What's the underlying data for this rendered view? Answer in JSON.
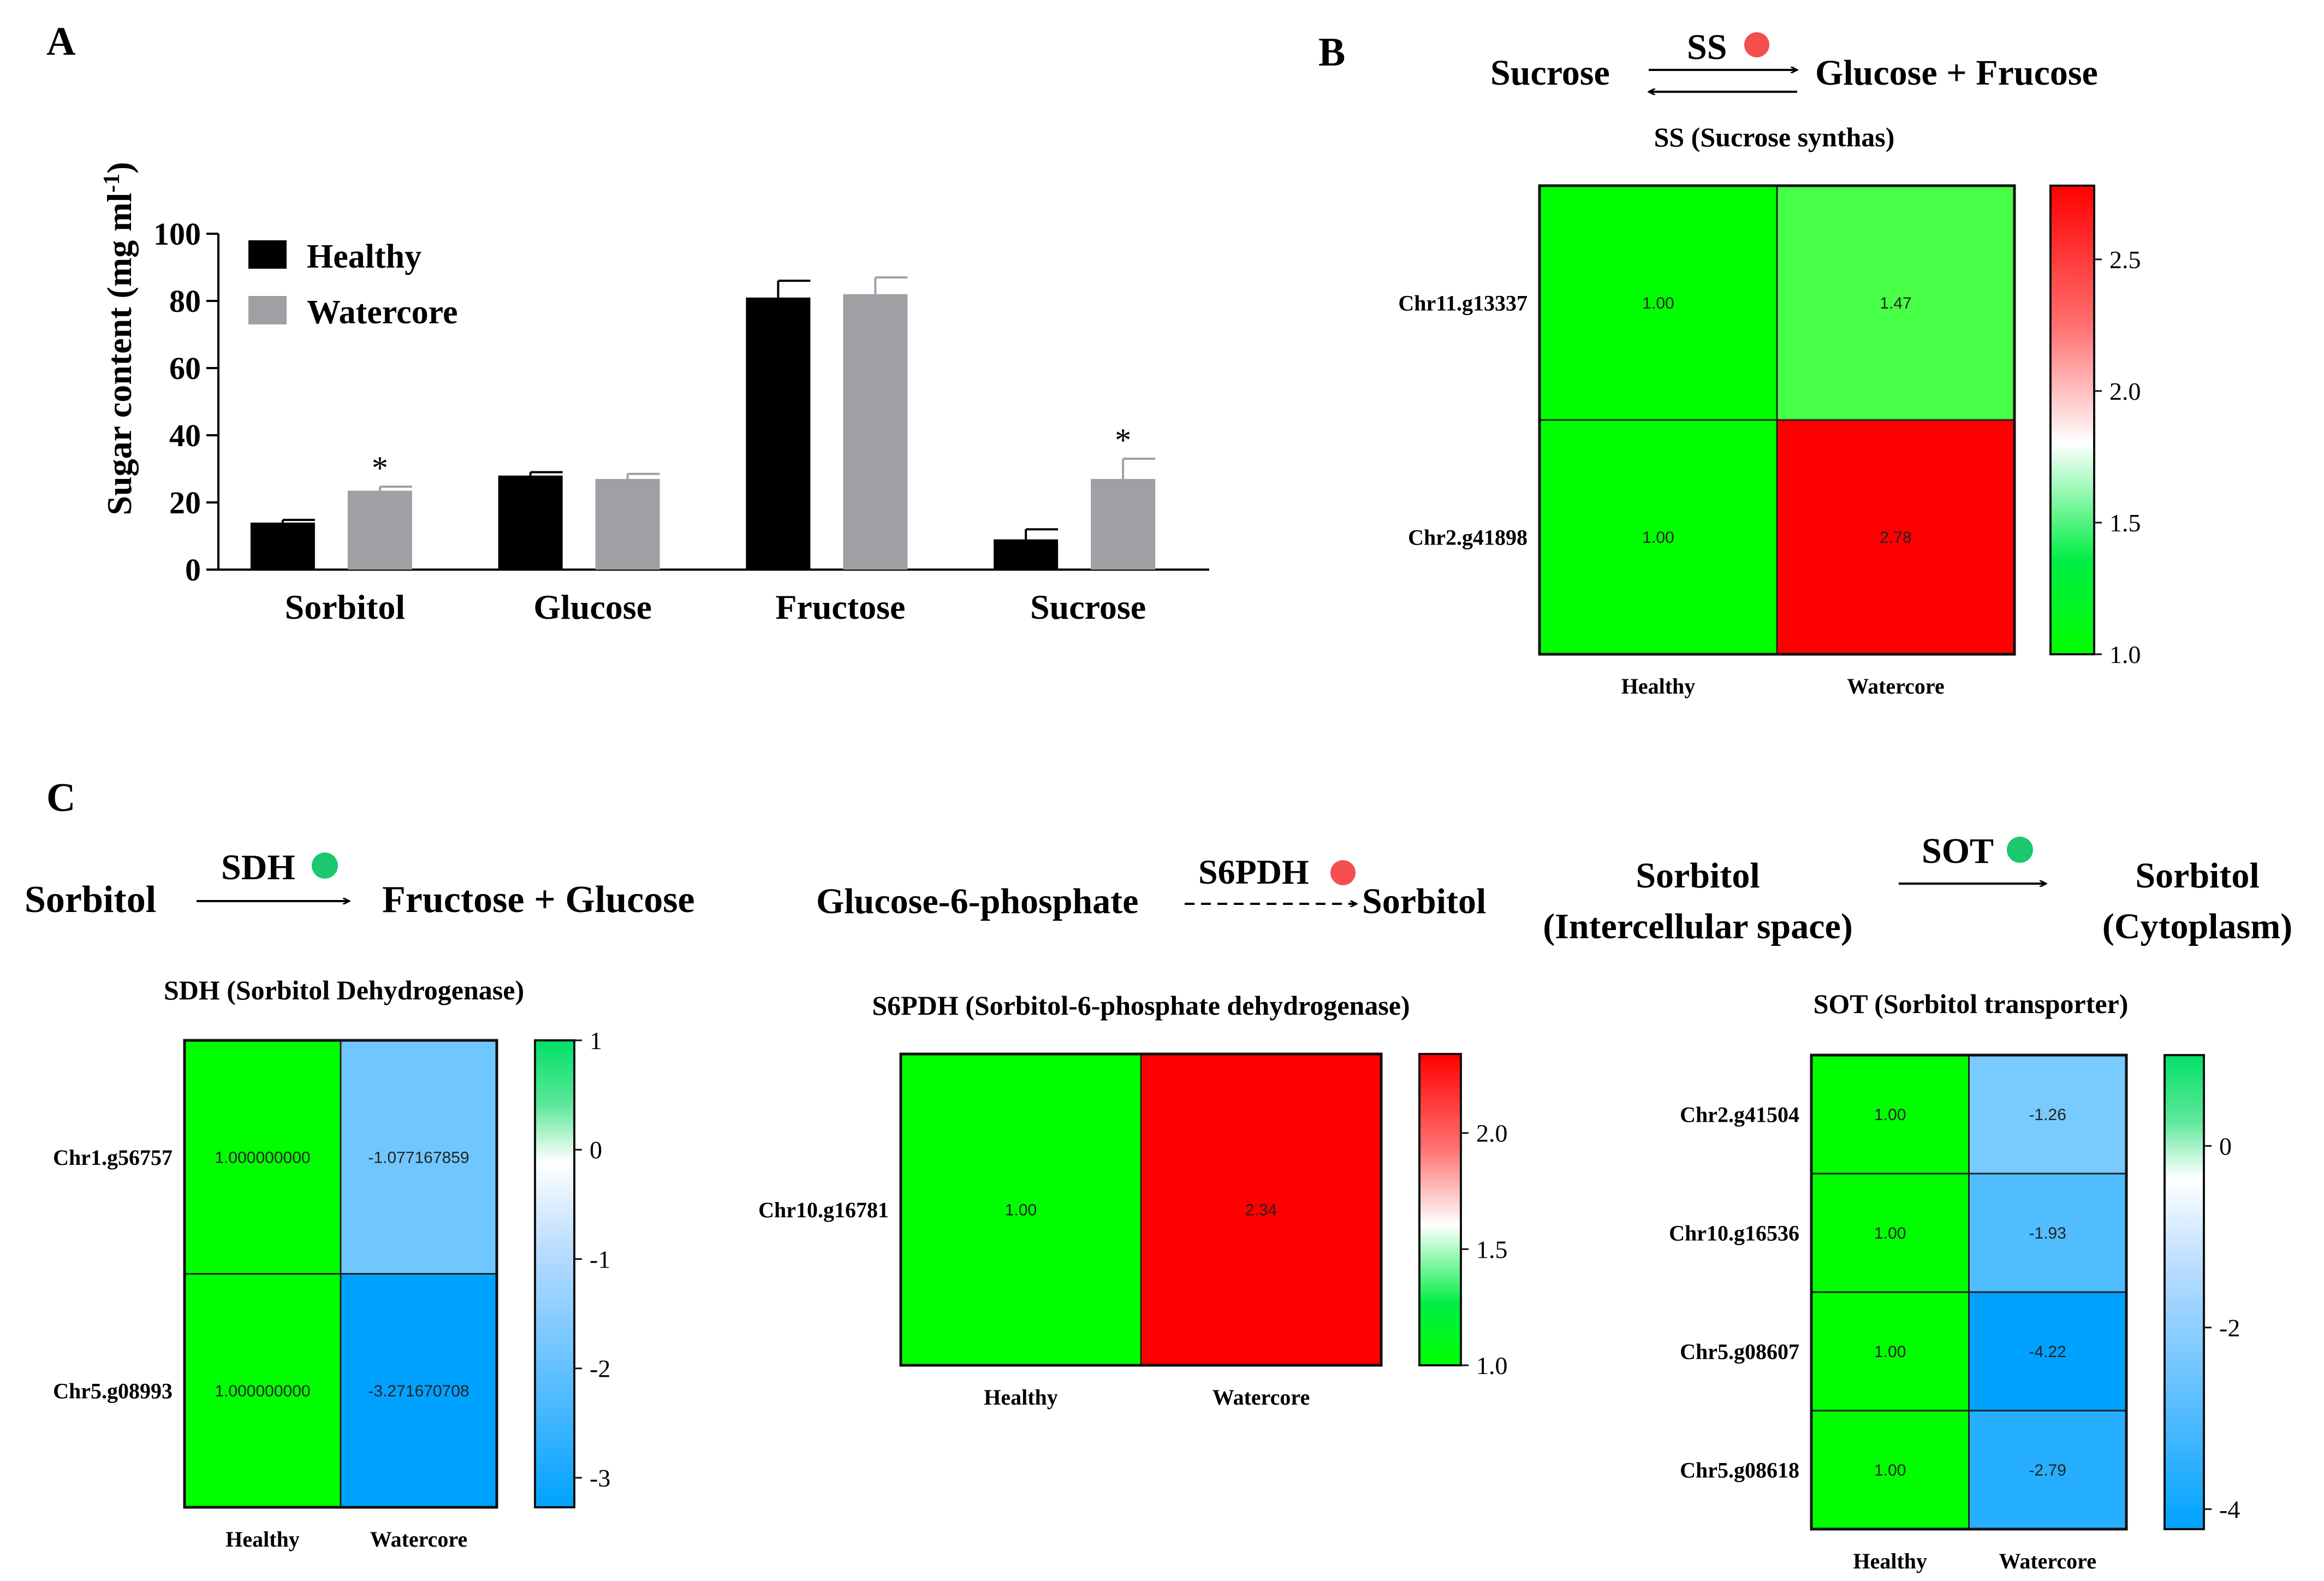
{
  "panels": {
    "a": "A",
    "b": "B",
    "c": "C"
  },
  "colors": {
    "healthy": "#000000",
    "watercore": "#a0a0a4",
    "green": "#00ff00",
    "red": "#ff0000",
    "blue": "#00a2ff",
    "up_dot": "#f44e4e",
    "down_dot": "#1cc86e"
  },
  "reactions": {
    "ss": {
      "substrate": "Sucrose",
      "enzyme": "SS",
      "product": "Glucose + Frucose",
      "caption": "SS (Sucrose synthas)"
    },
    "sdh": {
      "substrate": "Sorbitol",
      "enzyme": "SDH",
      "product": "Fructose + Glucose",
      "caption": "SDH (Sorbitol Dehydrogenase)"
    },
    "s6pdh": {
      "substrate": "Glucose-6-phosphate",
      "enzyme": "S6PDH",
      "product": "Sorbitol",
      "caption": "S6PDH (Sorbitol-6-phosphate dehydrogenase)"
    },
    "sot": {
      "substrate_1": "Sorbitol",
      "substrate_2": "(Intercellular space)",
      "enzyme": "SOT",
      "product_1": "Sorbitol",
      "product_2": "(Cytoplasm)",
      "caption": "SOT (Sorbitol transporter)"
    }
  },
  "chart_data": [
    {
      "type": "bar",
      "panel": "A",
      "ylabel": "Sugar content (mg ml",
      "ylabel_sup": "-1",
      "ylabel_close": ")",
      "ylim": [
        0,
        100
      ],
      "yticks": [
        "0",
        "20",
        "40",
        "60",
        "80",
        "100"
      ],
      "categories": [
        "Sorbitol",
        "Glucose",
        "Fructose",
        "Sucrose"
      ],
      "series": [
        {
          "name": "Healthy",
          "values": [
            14,
            28,
            81,
            9
          ],
          "errors": [
            0.8,
            1.0,
            5,
            3
          ]
        },
        {
          "name": "Watercore",
          "values": [
            23.5,
            27,
            82,
            27
          ],
          "errors": [
            1.2,
            1.5,
            5,
            6
          ]
        }
      ],
      "significance": [
        "*",
        "",
        "",
        "*"
      ]
    },
    {
      "type": "heatmap",
      "id": "ss",
      "rows": [
        "Chr11.g13337",
        "Chr2.g41898"
      ],
      "cols": [
        "Healthy",
        "Watercore"
      ],
      "values": [
        [
          1.0,
          1.47
        ],
        [
          1.0,
          2.78
        ]
      ],
      "labels": [
        [
          "1.00",
          "1.47"
        ],
        [
          "1.00",
          "2.78"
        ]
      ],
      "colorbar": {
        "min": 1.0,
        "max": 2.78,
        "ticks": [
          "2.5",
          "2.0",
          "1.5",
          "1.0"
        ]
      }
    },
    {
      "type": "heatmap",
      "id": "sdh",
      "rows": [
        "Chr1.g56757",
        "Chr5.g08993"
      ],
      "cols": [
        "Healthy",
        "Watercore"
      ],
      "values": [
        [
          1.0,
          -1.077167859
        ],
        [
          1.0,
          -3.271670708
        ]
      ],
      "labels": [
        [
          "1.000000000",
          "-1.077167859"
        ],
        [
          "1.000000000",
          "-3.271670708"
        ]
      ],
      "colorbar": {
        "min": -3.27,
        "max": 1.0,
        "ticks": [
          "1",
          "0",
          "-1",
          "-2",
          "-3"
        ]
      }
    },
    {
      "type": "heatmap",
      "id": "s6pdh",
      "rows": [
        "Chr10.g16781"
      ],
      "cols": [
        "Healthy",
        "Watercore"
      ],
      "values": [
        [
          1.0,
          2.34
        ]
      ],
      "labels": [
        [
          "1.00",
          "2.34"
        ]
      ],
      "colorbar": {
        "min": 1.0,
        "max": 2.34,
        "ticks": [
          "2.0",
          "1.5",
          "1.0"
        ]
      }
    },
    {
      "type": "heatmap",
      "id": "sot",
      "rows": [
        "Chr2.g41504",
        "Chr10.g16536",
        "Chr5.g08607",
        "Chr5.g08618"
      ],
      "cols": [
        "Healthy",
        "Watercore"
      ],
      "values": [
        [
          1.0,
          -1.26
        ],
        [
          1.0,
          -1.93
        ],
        [
          1.0,
          -4.22
        ],
        [
          1.0,
          -2.79
        ]
      ],
      "labels": [
        [
          "1.00",
          "-1.26"
        ],
        [
          "1.00",
          "-1.93"
        ],
        [
          "1.00",
          "-4.22"
        ],
        [
          "1.00",
          "-2.79"
        ]
      ],
      "colorbar": {
        "min": -4.22,
        "max": 1.0,
        "ticks": [
          "0",
          "-2",
          "-4"
        ]
      }
    }
  ]
}
